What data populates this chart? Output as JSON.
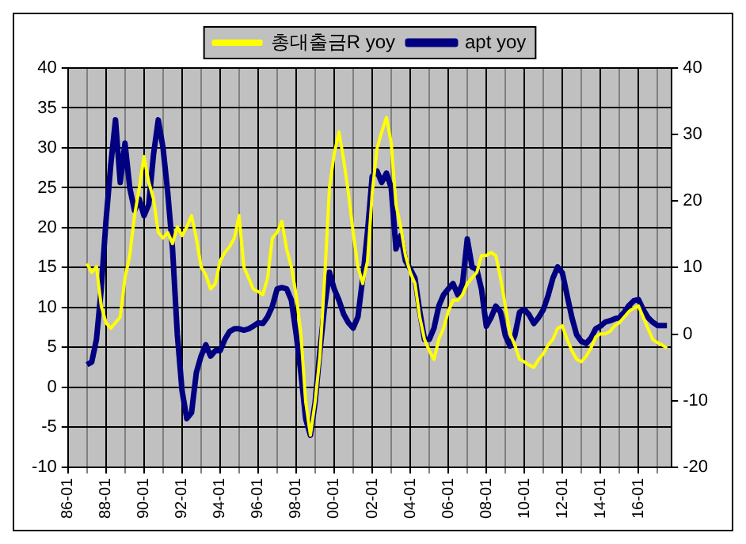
{
  "chart_data": {
    "type": "line",
    "categories": [
      "86-01",
      null,
      null,
      null,
      null,
      null,
      null,
      null,
      "88-01",
      null,
      null,
      null,
      null,
      null,
      null,
      null,
      "90-01",
      null,
      null,
      null,
      null,
      null,
      null,
      null,
      "92-01",
      null,
      null,
      null,
      null,
      null,
      null,
      null,
      "94-01",
      null,
      null,
      null,
      null,
      null,
      null,
      null,
      "96-01",
      null,
      null,
      null,
      null,
      null,
      null,
      null,
      "98-01",
      null,
      null,
      null,
      null,
      null,
      null,
      null,
      "00-01",
      null,
      null,
      null,
      null,
      null,
      null,
      null,
      "02-01",
      null,
      null,
      null,
      null,
      null,
      null,
      null,
      "04-01",
      null,
      null,
      null,
      null,
      null,
      null,
      null,
      "06-01",
      null,
      null,
      null,
      null,
      null,
      null,
      null,
      "08-01",
      null,
      null,
      null,
      null,
      null,
      null,
      null,
      "10-01",
      null,
      null,
      null,
      null,
      null,
      null,
      null,
      "12-01",
      null,
      null,
      null,
      null,
      null,
      null,
      null,
      "14-01",
      null,
      null,
      null,
      null,
      null,
      null,
      null,
      "16-01",
      null,
      null,
      null,
      null,
      null,
      null,
      null
    ],
    "series": [
      {
        "name": "총대출금R yoy",
        "color": "#ffff00",
        "values": [
          null,
          null,
          null,
          null,
          15.5,
          14.4,
          15.1,
          10.2,
          8.1,
          7.4,
          8.1,
          8.8,
          13.7,
          16.5,
          21.5,
          25,
          28.9,
          25.7,
          23.6,
          19.4,
          18.7,
          19.4,
          18,
          20.1,
          19,
          20.1,
          21.5,
          18.7,
          15.1,
          14.1,
          12.3,
          13,
          15.8,
          16.9,
          17.6,
          18.7,
          21.5,
          15.1,
          13.7,
          12.3,
          12,
          11.6,
          13.7,
          18.7,
          19.4,
          20.8,
          17.3,
          15.1,
          11.6,
          6.7,
          -1.8,
          -6,
          -1.8,
          3.9,
          13.7,
          25,
          29.2,
          32,
          28.5,
          24.3,
          19.4,
          15.1,
          13,
          15.8,
          24.3,
          29.9,
          32,
          33.8,
          30.6,
          22.9,
          20.1,
          16.5,
          14.4,
          13,
          8.8,
          6,
          4.6,
          3.5,
          6,
          7.4,
          9.5,
          10.9,
          10.9,
          11.6,
          13,
          13.7,
          14.4,
          16.5,
          16.5,
          16.9,
          16.5,
          13.7,
          10.2,
          6.7,
          5.3,
          3.5,
          3.2,
          2.8,
          2.5,
          3.5,
          4.2,
          5.3,
          6,
          7.4,
          7.7,
          6,
          4.6,
          3.5,
          3.2,
          3.9,
          4.9,
          6.3,
          6.7,
          6.7,
          7,
          7.7,
          8.1,
          8.8,
          9.5,
          9.9,
          10.2,
          8.8,
          7.4,
          6,
          5.6,
          5.3,
          4.9,
          null
        ]
      },
      {
        "name": "apt yoy",
        "color": "#000080",
        "axis": "y2",
        "values": [
          null,
          null,
          null,
          null,
          -4.6,
          -4.2,
          -0.8,
          6.8,
          17,
          25.4,
          32.2,
          22.8,
          28.7,
          22,
          18.6,
          20.3,
          17.8,
          19.5,
          27,
          32.2,
          28,
          21.2,
          12.8,
          0,
          -8.5,
          -12.7,
          -11.8,
          -5.8,
          -3.3,
          -1.6,
          -3.3,
          -2.5,
          -2.5,
          -0.8,
          0.4,
          0.8,
          0.8,
          0.6,
          0.8,
          1.2,
          1.7,
          1.6,
          2.6,
          4.2,
          6.8,
          7,
          6.8,
          5.1,
          0,
          -5.8,
          -12.7,
          -15.2,
          -10.2,
          -2.5,
          4.2,
          9.3,
          6.8,
          5.1,
          3,
          1.7,
          0.9,
          2.6,
          8.4,
          15.3,
          23.7,
          24.5,
          22.8,
          24.2,
          22,
          12.8,
          14.8,
          11,
          9.8,
          8.4,
          3.4,
          -0.8,
          -0.8,
          0.9,
          4.2,
          5.9,
          6.8,
          7.6,
          5.9,
          7.6,
          14.3,
          10.1,
          9.7,
          6.7,
          1.2,
          2.5,
          4.2,
          3.3,
          -0.2,
          -1.8,
          -0.2,
          3.3,
          3.7,
          2.9,
          1.6,
          2.5,
          3.7,
          5.8,
          8.4,
          10.1,
          9.2,
          5.8,
          2.5,
          -0.1,
          -1.1,
          -1.4,
          -0.6,
          0.8,
          1.2,
          1.8,
          2,
          2.3,
          2.5,
          3.3,
          4.3,
          5,
          5.2,
          3.7,
          2.5,
          1.8,
          1.3,
          1.3,
          1.3,
          null
        ]
      }
    ],
    "ylim": [
      -10,
      40
    ],
    "yticks": [
      -10,
      -5,
      0,
      5,
      10,
      15,
      20,
      25,
      30,
      35,
      40
    ],
    "y2lim": [
      -20,
      40
    ],
    "y2ticks": [
      -20,
      -10,
      0,
      10,
      20,
      30,
      40
    ],
    "grid": true,
    "legend": "top",
    "marker": "none",
    "line_style": "solid"
  }
}
